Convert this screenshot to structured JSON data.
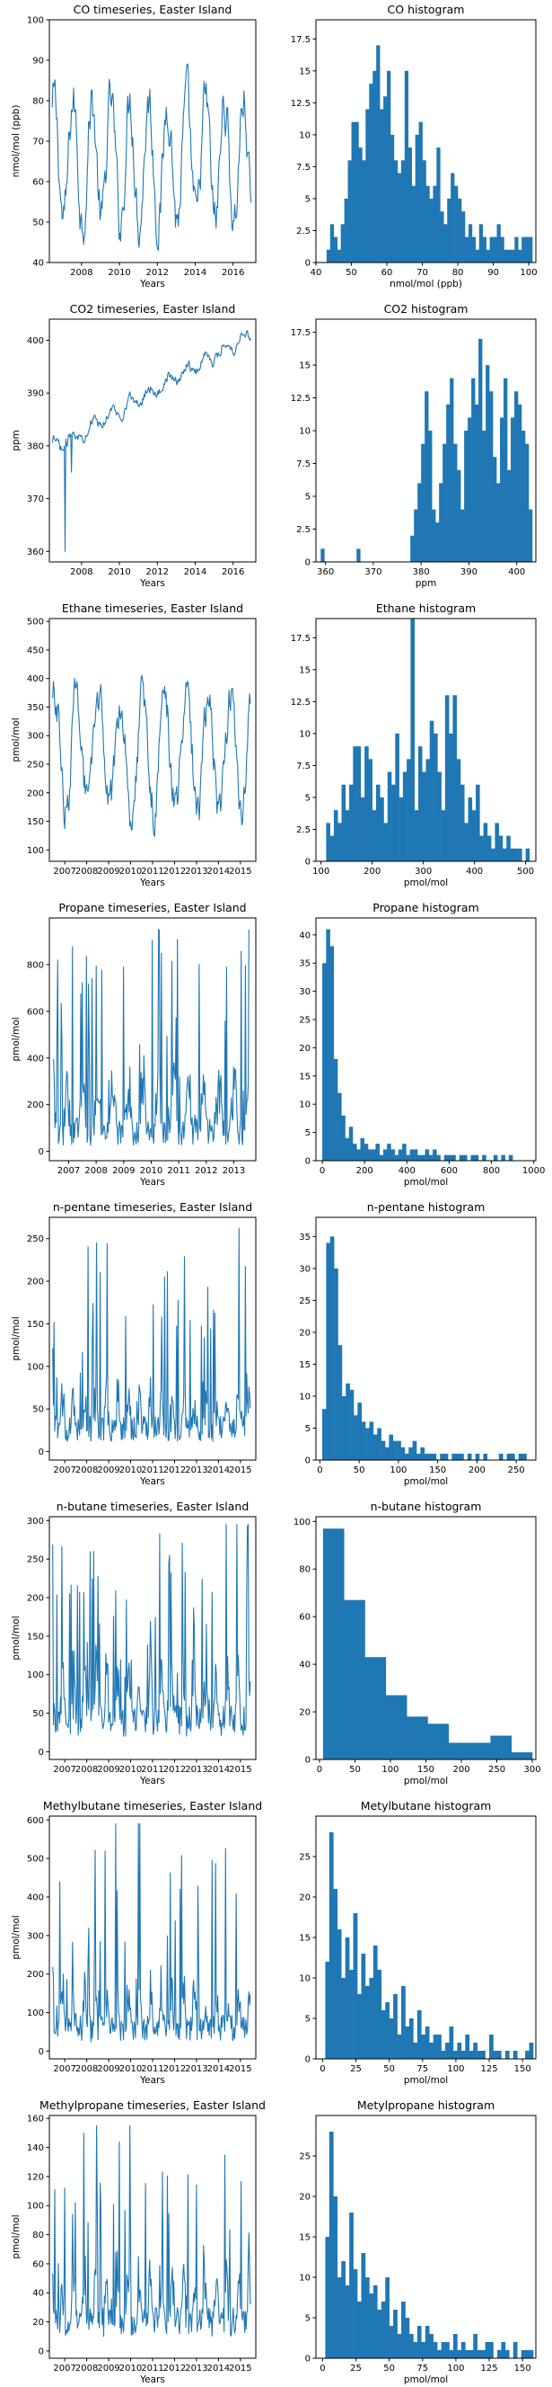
{
  "chart_data": [
    {
      "type": "line",
      "title": "CO timeseries, Easter Island",
      "xlabel": "Years",
      "ylabel": "nmol/mol (ppb)",
      "xlim": [
        2006.3,
        2017.2
      ],
      "ylim": [
        40,
        100
      ],
      "xticks": [
        2008,
        2010,
        2012,
        2014,
        2016
      ],
      "yticks": [
        40,
        50,
        60,
        70,
        80,
        90,
        100
      ],
      "base": 65,
      "amp": 15,
      "noise": 5,
      "min": 43,
      "max": 99,
      "trend": 0,
      "period": 1.0,
      "color": "#1f77b4"
    },
    {
      "type": "bar",
      "title": "CO histogram",
      "xlabel": "nmol/mol (ppb)",
      "ylabel": "",
      "xlim": [
        40,
        102
      ],
      "ylim": [
        0,
        19
      ],
      "xticks": [
        40,
        50,
        60,
        70,
        80,
        90,
        100
      ],
      "yticks": [
        0,
        2.5,
        5,
        7.5,
        10,
        12.5,
        15,
        17.5
      ],
      "bin_start": 43,
      "bin_width": 1,
      "values": [
        1,
        3,
        2,
        1,
        3,
        5,
        8,
        11,
        11,
        9,
        8,
        12,
        14,
        15,
        17,
        12,
        13,
        15,
        10,
        8,
        7,
        8,
        15,
        9,
        6,
        10,
        11,
        8,
        6,
        5,
        6,
        9,
        4,
        3,
        5,
        7,
        6,
        5,
        4,
        2,
        3,
        2,
        1,
        3,
        2,
        1,
        2,
        2,
        3,
        2,
        1,
        1,
        1,
        2,
        1,
        2,
        2,
        2
      ],
      "color": "#1f77b4"
    },
    {
      "type": "line",
      "title": "CO2 timeseries, Easter Island",
      "xlabel": "Years",
      "ylabel": "ppm",
      "xlim": [
        2006.3,
        2017.2
      ],
      "ylim": [
        358,
        404
      ],
      "xticks": [
        2008,
        2010,
        2012,
        2014,
        2016
      ],
      "yticks": [
        360,
        370,
        380,
        390,
        400
      ],
      "base": 379,
      "amp": 1.2,
      "noise": 0.8,
      "min": 360,
      "max": 403,
      "trend": 2.1,
      "period": 1.0,
      "color": "#1f77b4"
    },
    {
      "type": "bar",
      "title": "CO2 histogram",
      "xlabel": "ppm",
      "ylabel": "",
      "xlim": [
        358,
        404
      ],
      "ylim": [
        0,
        18.5
      ],
      "xticks": [
        360,
        370,
        380,
        390,
        400
      ],
      "yticks": [
        0,
        2.5,
        5,
        7.5,
        10,
        12.5,
        15,
        17.5
      ],
      "bin_start": 359,
      "bin_width": 0.75,
      "values": [
        1,
        0,
        0,
        0,
        0,
        0,
        0,
        0,
        0,
        0,
        1,
        0,
        0,
        0,
        0,
        0,
        0,
        0,
        0,
        0,
        0,
        0,
        0,
        0,
        0,
        2,
        4,
        6,
        9,
        13,
        10,
        4,
        3,
        6,
        9,
        12,
        14,
        9,
        7,
        4,
        10,
        11,
        14,
        12,
        17,
        10,
        15,
        13,
        8,
        6,
        11,
        14,
        7,
        11,
        13,
        12,
        10,
        9,
        4
      ],
      "color": "#1f77b4"
    },
    {
      "type": "line",
      "title": "Ethane timeseries, Easter Island",
      "xlabel": "Years",
      "ylabel": "pmol/mol",
      "xlim": [
        2006.3,
        2015.7
      ],
      "ylim": [
        80,
        505
      ],
      "xticks": [
        2007,
        2008,
        2009,
        2010,
        2011,
        2012,
        2013,
        2014,
        2015
      ],
      "yticks": [
        100,
        150,
        200,
        250,
        300,
        350,
        400,
        450,
        500
      ],
      "base": 270,
      "amp": 100,
      "noise": 30,
      "min": 110,
      "max": 490,
      "trend": 0,
      "period": 1.0,
      "color": "#1f77b4"
    },
    {
      "type": "bar",
      "title": "Ethane histogram",
      "xlabel": "pmol/mol",
      "ylabel": "",
      "xlim": [
        90,
        520
      ],
      "ylim": [
        0,
        19
      ],
      "xticks": [
        100,
        200,
        300,
        400,
        500
      ],
      "yticks": [
        0,
        2.5,
        5,
        7.5,
        10,
        12.5,
        15,
        17.5
      ],
      "bin_start": 110,
      "bin_width": 7.5,
      "values": [
        3,
        2,
        4,
        3,
        6,
        4,
        6,
        9,
        9,
        5,
        9,
        8,
        4,
        6,
        5,
        3,
        7,
        6,
        10,
        5,
        7,
        8,
        19,
        4,
        9,
        7,
        8,
        11,
        10,
        7,
        4,
        13,
        10,
        13,
        8,
        6,
        3,
        5,
        4,
        6,
        2,
        3,
        2,
        1,
        3,
        2,
        1,
        2,
        1,
        1,
        1,
        0,
        1
      ],
      "color": "#1f77b4"
    },
    {
      "type": "line",
      "title": "Propane timeseries, Easter Island",
      "xlabel": "Years",
      "ylabel": "pmol/mol",
      "xlim": [
        2006.3,
        2013.8
      ],
      "ylim": [
        -40,
        1000
      ],
      "xticks": [
        2007,
        2008,
        2009,
        2010,
        2011,
        2012,
        2013
      ],
      "yticks": [
        0,
        200,
        400,
        600,
        800
      ],
      "base": 60,
      "amp": 250,
      "noise": 120,
      "min": 5,
      "max": 950,
      "trend": 0,
      "period": 0.55,
      "spiky": true,
      "color": "#1f77b4"
    },
    {
      "type": "bar",
      "title": "Propane histogram",
      "xlabel": "pmol/mol",
      "ylabel": "",
      "xlim": [
        -30,
        1010
      ],
      "ylim": [
        0,
        43
      ],
      "xticks": [
        0,
        200,
        400,
        600,
        800,
        1000
      ],
      "yticks": [
        0,
        5,
        10,
        15,
        20,
        25,
        30,
        35,
        40
      ],
      "bin_start": 0,
      "bin_width": 18,
      "values": [
        35,
        41,
        38,
        18,
        12,
        8,
        4,
        6,
        3,
        2,
        4,
        3,
        2,
        2,
        3,
        1,
        2,
        3,
        2,
        1,
        2,
        3,
        1,
        2,
        2,
        1,
        1,
        2,
        1,
        2,
        1,
        0,
        1,
        1,
        1,
        0,
        1,
        1,
        0,
        1,
        1,
        0,
        1,
        0,
        0,
        1,
        0,
        1,
        0,
        1
      ],
      "color": "#1f77b4"
    },
    {
      "type": "line",
      "title": "n-pentane timeseries, Easter Island",
      "xlabel": "Years",
      "ylabel": "pmol/mol",
      "xlim": [
        2006.3,
        2015.7
      ],
      "ylim": [
        -10,
        275
      ],
      "xticks": [
        2007,
        2008,
        2009,
        2010,
        2011,
        2012,
        2013,
        2014,
        2015
      ],
      "yticks": [
        0,
        50,
        100,
        150,
        200,
        250
      ],
      "base": 30,
      "amp": 40,
      "noise": 30,
      "min": 3,
      "max": 262,
      "trend": 0,
      "period": 0.5,
      "spiky": true,
      "color": "#1f77b4"
    },
    {
      "type": "bar",
      "title": "n-pentane histogram",
      "xlabel": "pmol/mol",
      "ylabel": "",
      "xlim": [
        -5,
        275
      ],
      "ylim": [
        0,
        38
      ],
      "xticks": [
        0,
        50,
        100,
        150,
        200,
        250
      ],
      "yticks": [
        0,
        5,
        10,
        15,
        20,
        25,
        30,
        35
      ],
      "bin_start": 3,
      "bin_width": 5,
      "values": [
        8,
        34,
        35,
        30,
        18,
        10,
        12,
        11,
        7,
        9,
        6,
        5,
        6,
        4,
        5,
        3,
        2,
        4,
        3,
        3,
        2,
        1,
        2,
        3,
        1,
        2,
        1,
        1,
        1,
        0,
        1,
        1,
        0,
        1,
        1,
        1,
        0,
        1,
        0,
        1,
        0,
        1,
        0,
        0,
        0,
        1,
        0,
        1,
        1,
        0,
        1,
        1
      ],
      "color": "#1f77b4"
    },
    {
      "type": "line",
      "title": "n-butane timeseries, Easter Island",
      "xlabel": "Years",
      "ylabel": "pmol/mol",
      "xlim": [
        2006.3,
        2015.7
      ],
      "ylim": [
        -10,
        305
      ],
      "xticks": [
        2007,
        2008,
        2009,
        2010,
        2011,
        2012,
        2013,
        2014,
        2015
      ],
      "yticks": [
        0,
        50,
        100,
        150,
        200,
        250,
        300
      ],
      "base": 50,
      "amp": 70,
      "noise": 40,
      "min": 5,
      "max": 295,
      "trend": 0,
      "period": 0.5,
      "spiky": true,
      "color": "#1f77b4"
    },
    {
      "type": "bar",
      "title": "n-butane histogram",
      "xlabel": "pmol/mol",
      "ylabel": "",
      "xlim": [
        -5,
        305
      ],
      "ylim": [
        0,
        102
      ],
      "xticks": [
        0,
        50,
        100,
        150,
        200,
        250,
        300
      ],
      "yticks": [
        0,
        20,
        40,
        60,
        80,
        100
      ],
      "bin_start": 5,
      "bin_width": 29.5,
      "values": [
        97,
        67,
        43,
        27,
        18,
        15,
        7,
        7,
        10,
        3
      ],
      "color": "#1f77b4"
    },
    {
      "type": "line",
      "title": "Methylbutane timeseries, Easter Island",
      "xlabel": "Years",
      "ylabel": "pmol/mol",
      "xlim": [
        2006.3,
        2015.7
      ],
      "ylim": [
        -20,
        610
      ],
      "xticks": [
        2007,
        2008,
        2009,
        2010,
        2011,
        2012,
        2013,
        2014,
        2015
      ],
      "yticks": [
        0,
        100,
        200,
        300,
        400,
        500,
        600
      ],
      "base": 60,
      "amp": 100,
      "noise": 70,
      "min": 5,
      "max": 590,
      "trend": 0,
      "period": 0.5,
      "spiky": true,
      "color": "#1f77b4"
    },
    {
      "type": "bar",
      "title": "Metylbutane histogram",
      "xlabel": "pmol/mol",
      "ylabel": "",
      "xlim": [
        -5,
        160
      ],
      "ylim": [
        0,
        30
      ],
      "xticks": [
        0,
        25,
        50,
        75,
        100,
        125,
        150
      ],
      "yticks": [
        0,
        5,
        10,
        15,
        20,
        25
      ],
      "bin_start": 2,
      "bin_width": 3,
      "values": [
        12,
        28,
        21,
        16,
        10,
        15,
        11,
        18,
        8,
        13,
        9,
        10,
        14,
        11,
        6,
        7,
        5,
        8,
        3,
        9,
        4,
        5,
        2,
        6,
        3,
        4,
        2,
        3,
        3,
        1,
        2,
        4,
        1,
        2,
        1,
        3,
        1,
        2,
        1,
        1,
        0,
        3,
        1,
        1,
        0,
        1,
        0,
        1,
        0,
        0,
        1,
        2
      ],
      "color": "#1f77b4"
    },
    {
      "type": "line",
      "title": "Methylpropane timeseries, Easter Island",
      "xlabel": "Years",
      "ylabel": "pmol/mol",
      "xlim": [
        2006.3,
        2015.7
      ],
      "ylim": [
        -5,
        162
      ],
      "xticks": [
        2007,
        2008,
        2009,
        2010,
        2011,
        2012,
        2013,
        2014,
        2015
      ],
      "yticks": [
        0,
        20,
        40,
        60,
        80,
        100,
        120,
        140,
        160
      ],
      "base": 25,
      "amp": 35,
      "noise": 20,
      "min": 3,
      "max": 155,
      "trend": 0,
      "period": 0.5,
      "spiky": true,
      "color": "#1f77b4"
    },
    {
      "type": "bar",
      "title": "Metylpropane histogram",
      "xlabel": "pmol/mol",
      "ylabel": "",
      "xlim": [
        -5,
        160
      ],
      "ylim": [
        0,
        30
      ],
      "xticks": [
        0,
        25,
        50,
        75,
        100,
        125,
        150
      ],
      "yticks": [
        0,
        5,
        10,
        15,
        20,
        25
      ],
      "bin_start": 2,
      "bin_width": 3,
      "values": [
        15,
        28,
        20,
        10,
        12,
        9,
        18,
        11,
        7,
        13,
        10,
        8,
        9,
        6,
        7,
        10,
        4,
        6,
        3,
        7,
        5,
        3,
        2,
        4,
        2,
        4,
        3,
        2,
        1,
        2,
        2,
        1,
        3,
        1,
        2,
        1,
        1,
        3,
        1,
        1,
        2,
        2,
        0,
        1,
        2,
        1,
        0,
        2,
        0,
        1,
        1,
        1
      ],
      "color": "#1f77b4"
    }
  ]
}
